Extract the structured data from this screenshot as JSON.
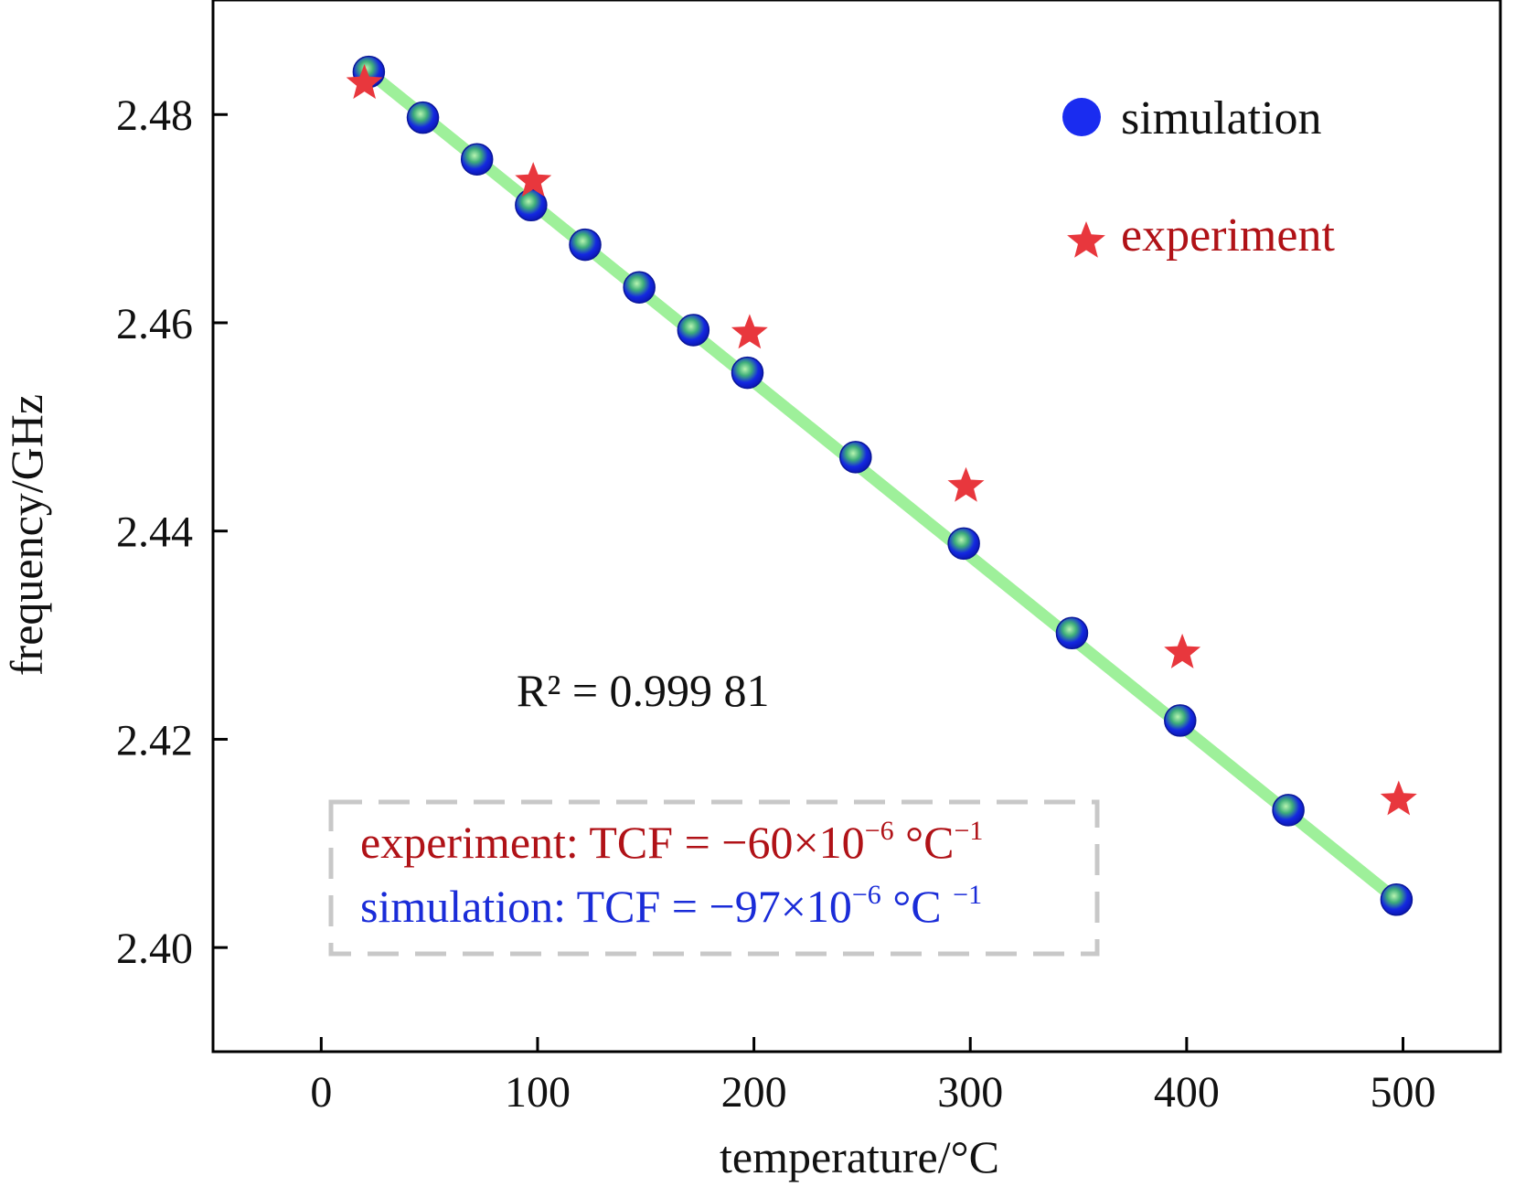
{
  "chart_data": {
    "type": "scatter",
    "xlabel": "temperature/°C",
    "ylabel": "frequency/GHz",
    "xlim": [
      -50,
      545
    ],
    "ylim": [
      2.39,
      2.491
    ],
    "x_ticks": [
      0,
      100,
      200,
      300,
      400,
      500
    ],
    "x_tick_labels": [
      "0",
      "100",
      "200",
      "300",
      "400",
      "500"
    ],
    "y_ticks": [
      2.4,
      2.42,
      2.44,
      2.46,
      2.48
    ],
    "y_tick_labels": [
      "2.40",
      "2.42",
      "2.44",
      "2.46",
      "2.48"
    ],
    "grid": false,
    "legend_position": "top-right",
    "series": [
      {
        "name": "simulation",
        "marker": "circle",
        "color": "#1a2cf0",
        "x": [
          22,
          47,
          72,
          97,
          122,
          147,
          172,
          197,
          247,
          297,
          347,
          397,
          447,
          497
        ],
        "y": [
          2.4841,
          2.4797,
          2.4757,
          2.4713,
          2.4675,
          2.4634,
          2.4593,
          2.4552,
          2.4471,
          2.4388,
          2.4302,
          2.4218,
          2.4132,
          2.4046
        ]
      },
      {
        "name": "experiment",
        "marker": "star",
        "color": "#e8373d",
        "x": [
          20,
          98,
          198,
          298,
          398,
          498
        ],
        "y": [
          2.483,
          2.4736,
          2.459,
          2.4443,
          2.4283,
          2.4142
        ]
      }
    ],
    "fit_line": {
      "color": "#9ef09a",
      "x": [
        22,
        497
      ],
      "y": [
        2.4841,
        2.4046
      ]
    },
    "annotations": {
      "r_squared": "R² = 0.999 81",
      "experiment_label": "experiment: TCF = −60×10",
      "experiment_exp": "−6",
      "experiment_unit": " °C",
      "experiment_unit_exp": "−1",
      "simulation_label": "simulation: TCF = −97×10",
      "simulation_exp": "−6",
      "simulation_unit": " °C ",
      "simulation_unit_exp": "−1"
    }
  },
  "colors": {
    "experiment_text": "#b01217",
    "simulation_text": "#1a2cd8",
    "dashed_box": "#c8c8c8"
  }
}
